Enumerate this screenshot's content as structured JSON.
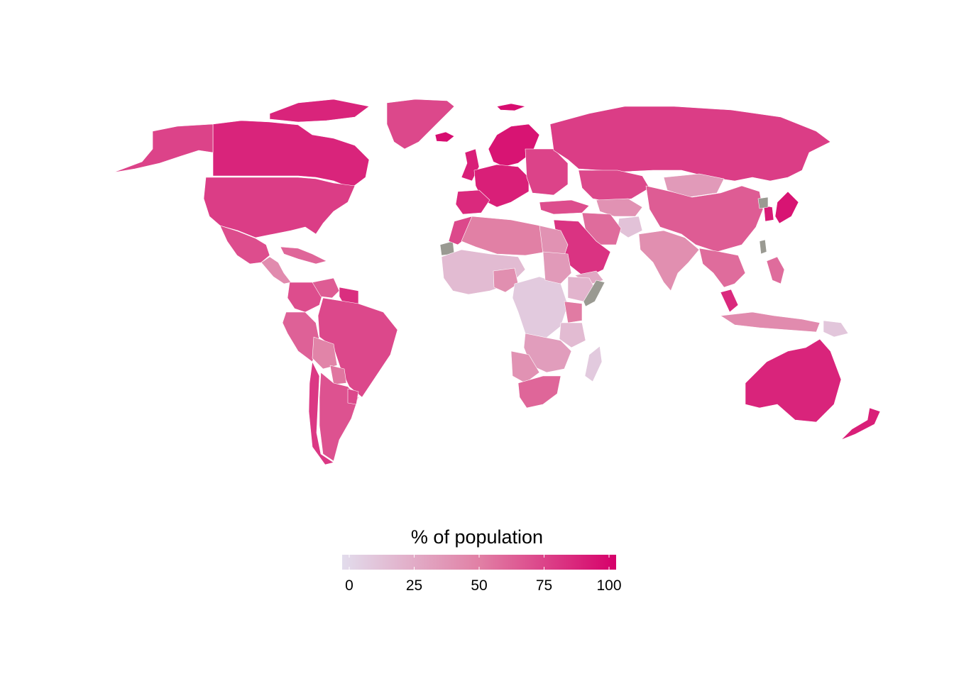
{
  "legend": {
    "title": "% of population",
    "min": 0,
    "max": 100,
    "ticks": [
      {
        "label": "0",
        "value": 0
      },
      {
        "label": "25",
        "value": 25
      },
      {
        "label": "50",
        "value": 50
      },
      {
        "label": "75",
        "value": 75
      },
      {
        "label": "100",
        "value": 100
      }
    ],
    "color_low": "#e2dcec",
    "color_high": "#d6006a",
    "no_data_color": "#9a9a92"
  },
  "map": {
    "projection": "equal-earth-like world map",
    "regions": [
      {
        "name": "Canada",
        "value": 86
      },
      {
        "name": "Alaska",
        "value": 74
      },
      {
        "name": "Greenland",
        "value": 72
      },
      {
        "name": "Arctic islands",
        "value": 86
      },
      {
        "name": "United States",
        "value": 76
      },
      {
        "name": "Mexico",
        "value": 70
      },
      {
        "name": "Central America",
        "value": 44
      },
      {
        "name": "Caribbean",
        "value": 60
      },
      {
        "name": "Colombia",
        "value": 70
      },
      {
        "name": "Venezuela",
        "value": 64
      },
      {
        "name": "Guianas",
        "value": 82
      },
      {
        "name": "Peru",
        "value": 62
      },
      {
        "name": "Brazil",
        "value": 72
      },
      {
        "name": "Bolivia",
        "value": 48
      },
      {
        "name": "Paraguay",
        "value": 54
      },
      {
        "name": "Chile",
        "value": 78
      },
      {
        "name": "Argentina",
        "value": 68
      },
      {
        "name": "Uruguay",
        "value": 72
      },
      {
        "name": "Iceland",
        "value": 95
      },
      {
        "name": "Svalbard",
        "value": 95
      },
      {
        "name": "United Kingdom",
        "value": 88
      },
      {
        "name": "Scandinavia",
        "value": 92
      },
      {
        "name": "Western Europe",
        "value": 88
      },
      {
        "name": "Iberia",
        "value": 84
      },
      {
        "name": "Eastern Europe",
        "value": 74
      },
      {
        "name": "Turkey",
        "value": 70
      },
      {
        "name": "Russia",
        "value": 76
      },
      {
        "name": "Kazakhstan",
        "value": 72
      },
      {
        "name": "Central Asia",
        "value": 40
      },
      {
        "name": "Mongolia",
        "value": 36
      },
      {
        "name": "China",
        "value": 64
      },
      {
        "name": "Korea",
        "value": 90
      },
      {
        "name": "North Korea",
        "value": null
      },
      {
        "name": "Japan",
        "value": 92
      },
      {
        "name": "Taiwan",
        "value": null
      },
      {
        "name": "Afghanistan",
        "value": 14
      },
      {
        "name": "Iran",
        "value": 58
      },
      {
        "name": "Arabian Peninsula",
        "value": 80
      },
      {
        "name": "Yemen",
        "value": 28
      },
      {
        "name": "India",
        "value": 42
      },
      {
        "name": "Southeast Asia",
        "value": 58
      },
      {
        "name": "Malaysia",
        "value": 84
      },
      {
        "name": "Indonesia",
        "value": 44
      },
      {
        "name": "Philippines",
        "value": 58
      },
      {
        "name": "Papua New Guinea",
        "value": 12
      },
      {
        "name": "Australia",
        "value": 86
      },
      {
        "name": "New Zealand",
        "value": 88
      },
      {
        "name": "Western Sahara",
        "value": null
      },
      {
        "name": "Morocco",
        "value": 72
      },
      {
        "name": "North Africa",
        "value": 50
      },
      {
        "name": "Egypt",
        "value": 40
      },
      {
        "name": "West Africa",
        "value": 18
      },
      {
        "name": "Nigeria",
        "value": 42
      },
      {
        "name": "Central Africa",
        "value": 10
      },
      {
        "name": "Sudan",
        "value": 36
      },
      {
        "name": "Ethiopia",
        "value": 22
      },
      {
        "name": "Somalia",
        "value": null
      },
      {
        "name": "Kenya",
        "value": 52
      },
      {
        "name": "East Africa",
        "value": 18
      },
      {
        "name": "Southern Africa",
        "value": 34
      },
      {
        "name": "Namibia-Botswana",
        "value": 40
      },
      {
        "name": "South Africa",
        "value": 60
      },
      {
        "name": "Madagascar",
        "value": 10
      }
    ]
  }
}
